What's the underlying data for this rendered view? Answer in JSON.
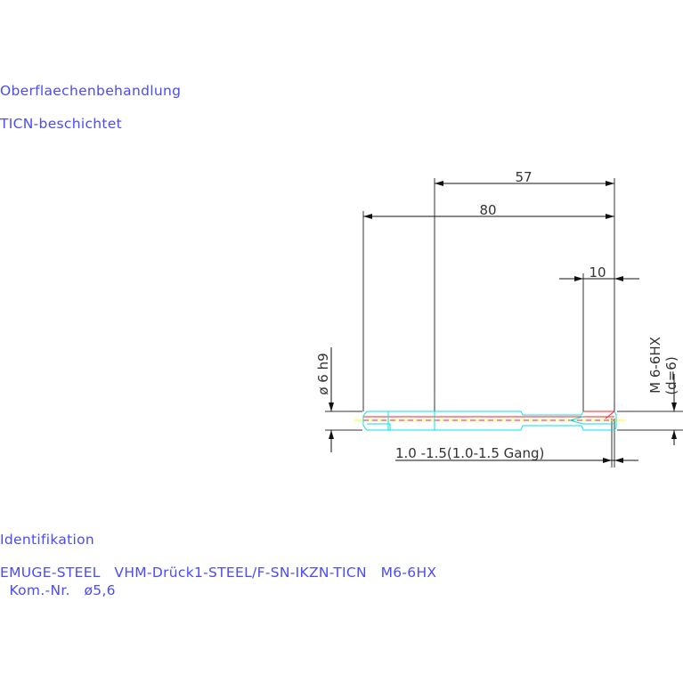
{
  "surface": {
    "heading": "Oberflaechenbehandlung",
    "value": "TICN-beschichtet"
  },
  "identification": {
    "heading": "Identifikation",
    "line1": "EMUGE-STEEL   VHM-Drück1-STEEL/F-SN-IKZN-TICN   M6-6HX",
    "line2": "  Kom.-Nr.   ø5,6"
  },
  "drawing": {
    "dim_57": "57",
    "dim_80": "80",
    "dim_10": "10",
    "shank_dia": "ø 6 h9",
    "thread": "M 6-6HX",
    "thread_d": "(d=6)",
    "chamfer": "1.0 -1.5(1.0-1.5 Gang)",
    "colors": {
      "dim": "#333333",
      "tool": "#00e5ee",
      "axis": "#ffff00",
      "center": "#ff2020",
      "text": "#4a4aff"
    }
  }
}
